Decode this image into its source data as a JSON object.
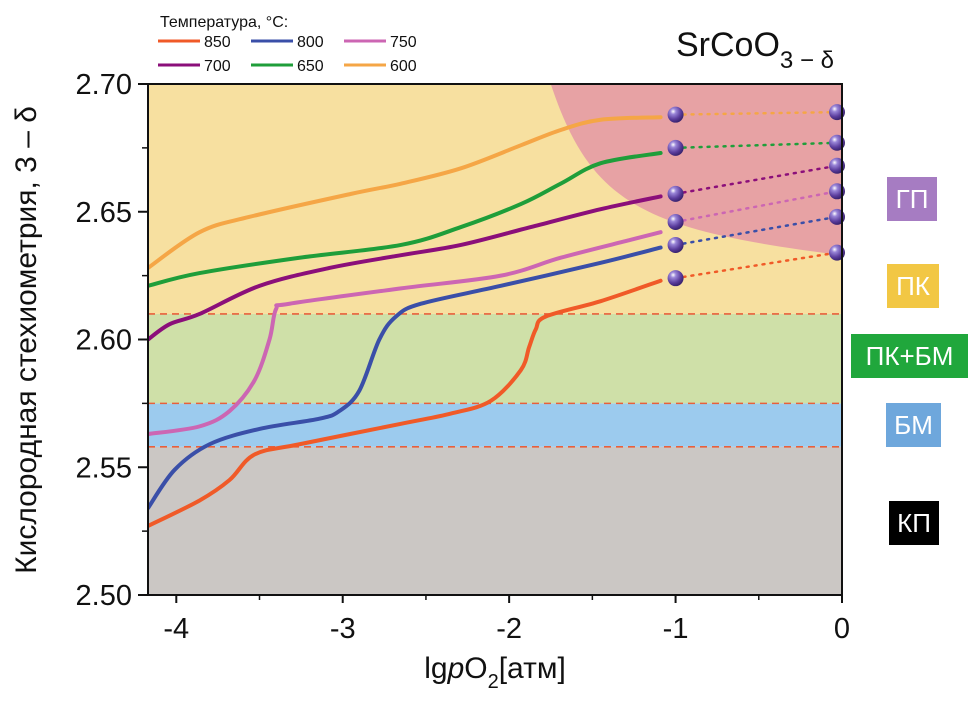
{
  "chart_data": {
    "type": "line",
    "title": "SrCoO",
    "title_subscript": "3 − δ",
    "xlabel_parts": [
      "lg",
      "p",
      "O",
      "2",
      "[атм]"
    ],
    "ylabel": "Кислородная стехиометрия, 3 – δ",
    "xlim": [
      -4.17,
      0
    ],
    "ylim": [
      2.5,
      2.7
    ],
    "xticks": [
      -4,
      -3,
      -2,
      -1,
      0
    ],
    "xtick_labels": [
      "-4",
      "-3",
      "-2",
      "-1",
      "0"
    ],
    "xminor_ticks": [
      -3.5,
      -2.5,
      -1.5,
      -0.5
    ],
    "yticks": [
      2.5,
      2.55,
      2.6,
      2.65,
      2.7
    ],
    "ytick_labels": [
      "2.50",
      "2.55",
      "2.60",
      "2.65",
      "2.70"
    ],
    "yminor_ticks": [
      2.525,
      2.575,
      2.625,
      2.675
    ],
    "grid": false,
    "legend": {
      "title": "Температура, °C:",
      "placement": "top-left-outside",
      "entries": [
        "850",
        "800",
        "750",
        "700",
        "650",
        "600"
      ]
    },
    "series": [
      {
        "name": "850",
        "color": "#f05a28",
        "x": [
          -4.17,
          -3.86,
          -3.68,
          -3.53,
          -3.26,
          -2.65,
          -2.35,
          -2.11,
          -1.93,
          -1.88,
          -1.84,
          -1.78,
          -1.45,
          -1.09
        ],
        "y": [
          2.527,
          2.537,
          2.545,
          2.555,
          2.559,
          2.567,
          2.571,
          2.576,
          2.588,
          2.597,
          2.604,
          2.609,
          2.615,
          2.623
        ]
      },
      {
        "name": "800",
        "color": "#3a4fa8",
        "x": [
          -4.17,
          -4.01,
          -3.8,
          -3.5,
          -3.14,
          -3.02,
          -2.9,
          -2.78,
          -2.68,
          -2.53,
          -2.05,
          -1.45,
          -1.09
        ],
        "y": [
          2.534,
          2.549,
          2.559,
          2.565,
          2.569,
          2.572,
          2.58,
          2.6,
          2.609,
          2.614,
          2.621,
          2.63,
          2.636
        ]
      },
      {
        "name": "750",
        "color": "#cc66b3",
        "x": [
          -4.17,
          -3.86,
          -3.68,
          -3.53,
          -3.44,
          -3.4,
          -3.32,
          -2.65,
          -2.05,
          -1.69,
          -1.27,
          -1.09
        ],
        "y": [
          2.563,
          2.566,
          2.572,
          2.584,
          2.6,
          2.612,
          2.614,
          2.62,
          2.625,
          2.632,
          2.639,
          2.642
        ]
      },
      {
        "name": "700",
        "color": "#8b0f7a",
        "x": [
          -4.17,
          -4.04,
          -3.86,
          -3.5,
          -3.08,
          -2.65,
          -2.29,
          -1.87,
          -1.45,
          -1.09
        ],
        "y": [
          2.6,
          2.606,
          2.61,
          2.621,
          2.628,
          2.633,
          2.637,
          2.644,
          2.651,
          2.656
        ]
      },
      {
        "name": "650",
        "color": "#1f9e3a",
        "x": [
          -4.17,
          -3.86,
          -3.26,
          -2.65,
          -2.29,
          -1.93,
          -1.69,
          -1.45,
          -1.09
        ],
        "y": [
          2.621,
          2.626,
          2.632,
          2.637,
          2.644,
          2.653,
          2.661,
          2.669,
          2.673
        ]
      },
      {
        "name": "600",
        "color": "#f5a646",
        "x": [
          -4.17,
          -3.86,
          -3.56,
          -2.95,
          -2.65,
          -2.29,
          -1.93,
          -1.69,
          -1.45,
          -1.09
        ],
        "y": [
          2.628,
          2.642,
          2.648,
          2.657,
          2.661,
          2.667,
          2.676,
          2.682,
          2.686,
          2.687
        ]
      }
    ],
    "markers": [
      {
        "series": "850",
        "x": [
          -1,
          -0.03
        ],
        "y": [
          2.624,
          2.634
        ],
        "color": "#f05a28"
      },
      {
        "series": "800",
        "x": [
          -1,
          -0.03
        ],
        "y": [
          2.637,
          2.648
        ],
        "color": "#3a4fa8"
      },
      {
        "series": "750",
        "x": [
          -1,
          -0.03
        ],
        "y": [
          2.646,
          2.658
        ],
        "color": "#cc66b3"
      },
      {
        "series": "700",
        "x": [
          -1,
          -0.03
        ],
        "y": [
          2.657,
          2.668
        ],
        "color": "#8b0f7a"
      },
      {
        "series": "650",
        "x": [
          -1,
          -0.03
        ],
        "y": [
          2.675,
          2.677
        ],
        "color": "#1f9e3a"
      },
      {
        "series": "600",
        "x": [
          -1,
          -0.03
        ],
        "y": [
          2.688,
          2.689
        ],
        "color": "#f5a646"
      }
    ],
    "bands": [
      {
        "name": "КП",
        "y": [
          2.5,
          2.558
        ],
        "color": "#cbc7c4"
      },
      {
        "name": "БМ",
        "y": [
          2.558,
          2.575
        ],
        "color": "#9ccbee"
      },
      {
        "name": "ПК+БМ",
        "y": [
          2.575,
          2.61
        ],
        "color": "#cfe0a8"
      },
      {
        "name": "ПК",
        "y": [
          2.61,
          2.7
        ],
        "color": "#f7e0a0"
      }
    ],
    "band_boundaries_dashed": [
      2.558,
      2.575,
      2.61
    ],
    "region_gp": {
      "name": "ГП",
      "color": "#e7a2a4",
      "x_start_at_top": -1.75,
      "y_at_right_edge": 2.633
    }
  },
  "phase_legend": [
    {
      "label": "ГП",
      "color": "#a67cc2"
    },
    {
      "label": "ПК",
      "color": "#f2c744"
    },
    {
      "label": "ПК+БМ",
      "color": "#20a73c"
    },
    {
      "label": "БМ",
      "color": "#6ea7dc"
    },
    {
      "label": "КП",
      "color": "#000000"
    }
  ]
}
